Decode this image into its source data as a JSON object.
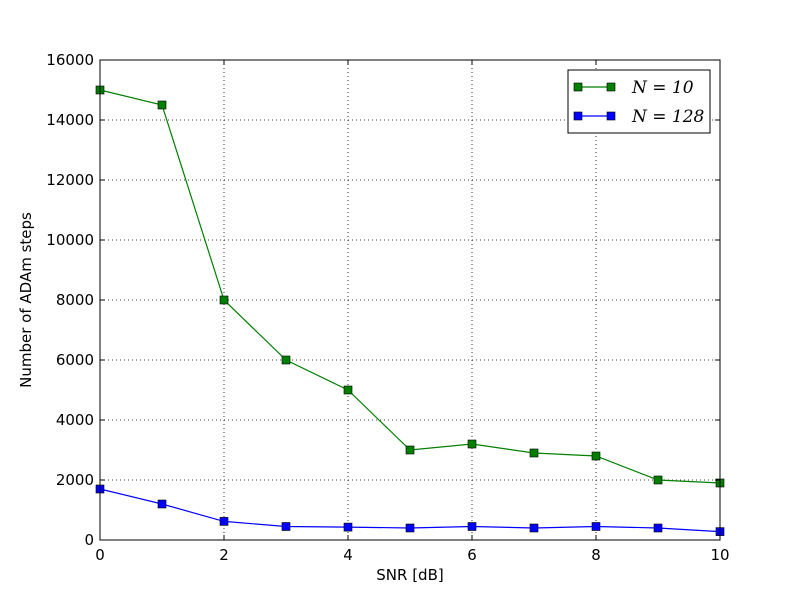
{
  "chart_data": {
    "type": "line",
    "title": "",
    "xlabel": "SNR [dB]",
    "ylabel": "Number of ADAm steps",
    "xlim": [
      0,
      10
    ],
    "ylim": [
      0,
      16000
    ],
    "xticks": [
      0,
      2,
      4,
      6,
      8,
      10
    ],
    "yticks": [
      0,
      2000,
      4000,
      6000,
      8000,
      10000,
      12000,
      14000,
      16000
    ],
    "grid": true,
    "legend_position": "top-right",
    "x": [
      0,
      1,
      2,
      3,
      4,
      5,
      6,
      7,
      8,
      9,
      10
    ],
    "series": [
      {
        "name": "N = 10",
        "color": "#007f00",
        "marker": "square",
        "values": [
          15000,
          14500,
          8000,
          6000,
          5000,
          3000,
          3200,
          2900,
          2800,
          2000,
          1900
        ]
      },
      {
        "name": "N = 128",
        "color": "#0000ff",
        "marker": "square",
        "values": [
          1700,
          1200,
          620,
          450,
          430,
          400,
          450,
          400,
          450,
          400,
          280
        ]
      }
    ]
  }
}
